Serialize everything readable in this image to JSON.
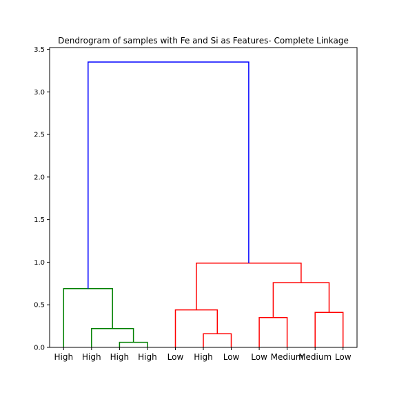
{
  "chart_data": {
    "type": "dendrogram",
    "title": "Dendrogram of samples with Fe and Si as Features- Complete Linkage",
    "xlabel": "",
    "ylabel": "",
    "ylim": [
      0,
      3.52
    ],
    "yticks": [
      0.0,
      0.5,
      1.0,
      1.5,
      2.0,
      2.5,
      3.0,
      3.5
    ],
    "ytick_labels": [
      "0.0",
      "0.5",
      "1.0",
      "1.5",
      "2.0",
      "2.5",
      "3.0",
      "3.5"
    ],
    "leaves": [
      "High",
      "High",
      "High",
      "High",
      "Low",
      "High",
      "Low",
      "Low",
      "Medium",
      "Medium",
      "Low"
    ],
    "colors": {
      "green": "#008000",
      "red": "#ff0000",
      "blue": "#0000ff"
    },
    "merges": [
      {
        "left": 2,
        "right": 3,
        "height": 0.06,
        "color": "green"
      },
      {
        "left": 1,
        "right": "m0",
        "height": 0.22,
        "color": "green"
      },
      {
        "left": 0,
        "right": "m1",
        "height": 0.69,
        "color": "green"
      },
      {
        "left": 5,
        "right": 6,
        "height": 0.16,
        "color": "red"
      },
      {
        "left": 4,
        "right": "m3",
        "height": 0.44,
        "color": "red"
      },
      {
        "left": 7,
        "right": 8,
        "height": 0.35,
        "color": "red"
      },
      {
        "left": 9,
        "right": 10,
        "height": 0.41,
        "color": "red"
      },
      {
        "left": "m5",
        "right": "m6",
        "height": 0.76,
        "color": "red"
      },
      {
        "left": "m4",
        "right": "m7",
        "height": 0.99,
        "color": "red"
      },
      {
        "left": "m2",
        "right": "m8",
        "height": 3.35,
        "color": "blue"
      }
    ],
    "grid": false,
    "legend": "none"
  }
}
